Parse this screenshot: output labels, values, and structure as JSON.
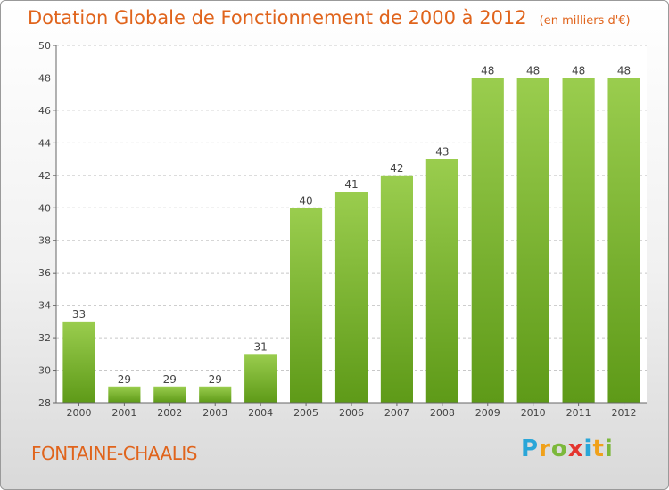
{
  "title": "Dotation Globale de Fonctionnement de 2000 à 2012",
  "unit": "(en milliers d'€)",
  "commune": "FONTAINE-CHAALIS",
  "logo": {
    "letters": [
      "P",
      "r",
      "o",
      "x",
      "i",
      "t",
      "i"
    ],
    "colors": [
      "#2aa6d8",
      "#f0a11a",
      "#7cb83b",
      "#e4352f",
      "#2aa6d8",
      "#f0a11a",
      "#7cb83b"
    ]
  },
  "colors": {
    "bar_top": "#9acd4e",
    "bar_bottom": "#5e9a18",
    "accent": "#e0641c"
  },
  "chart_data": {
    "type": "bar",
    "categories": [
      "2000",
      "2001",
      "2002",
      "2003",
      "2004",
      "2005",
      "2006",
      "2007",
      "2008",
      "2009",
      "2010",
      "2011",
      "2012"
    ],
    "values": [
      33,
      29,
      29,
      29,
      31,
      40,
      41,
      42,
      43,
      48,
      48,
      48,
      48
    ],
    "ylim": [
      28,
      50
    ],
    "yticks": [
      28,
      30,
      32,
      34,
      36,
      38,
      40,
      42,
      44,
      46,
      48,
      50
    ],
    "grid": true,
    "data_labels": true
  }
}
